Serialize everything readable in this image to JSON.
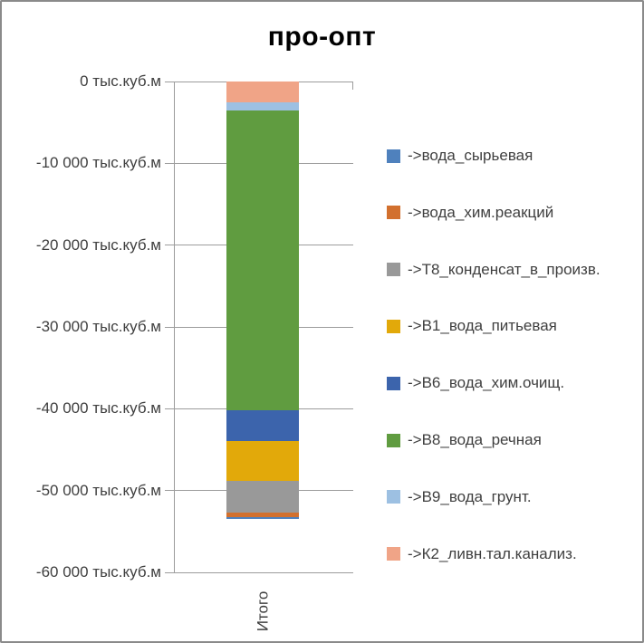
{
  "chart_data": {
    "type": "bar",
    "stacked": true,
    "orientation": "vertical",
    "title": "про-опт",
    "categories": [
      "Итого"
    ],
    "y_axis": {
      "unit": "тыс.куб.м",
      "max": 0,
      "min": -60000,
      "tick_values": [
        0,
        -10000,
        -20000,
        -30000,
        -40000,
        -50000,
        -60000
      ],
      "tick_labels": [
        "0 тыс.куб.м",
        "-10 000 тыс.куб.м",
        "-20 000 тыс.куб.м",
        "-30 000 тыс.куб.м",
        "-40 000 тыс.куб.м",
        "-50 000 тыс.куб.м",
        "-60 000 тыс.куб.м"
      ],
      "grid": true
    },
    "series": [
      {
        "name": "->вода_сырьевая",
        "color": "#4F81BD",
        "values": [
          -270
        ]
      },
      {
        "name": "->вода_хим.реакций",
        "color": "#D2702E",
        "values": [
          -530
        ]
      },
      {
        "name": "->Т8_конденсат_в_произв.",
        "color": "#999999",
        "values": [
          -3900
        ]
      },
      {
        "name": "->В1_вода_питьевая",
        "color": "#E2A90A",
        "values": [
          -4800
        ]
      },
      {
        "name": "->В6_вода_хим.очищ.",
        "color": "#3C64AC",
        "values": [
          -3800
        ]
      },
      {
        "name": "->В8_вода_речная",
        "color": "#609C40",
        "values": [
          -36700
        ]
      },
      {
        "name": "->В9_вода_грунт.",
        "color": "#9DC0E2",
        "values": [
          -1000
        ]
      },
      {
        "name": "->К2_ливн.тал.канализ.",
        "color": "#F0A487",
        "values": [
          -2500
        ]
      }
    ],
    "stack_order_from_zero": [
      "->К2_ливн.тал.канализ.",
      "->В9_вода_грунт.",
      "->В8_вода_речная",
      "->В6_вода_хим.очищ.",
      "->В1_вода_питьевая",
      "->Т8_конденсат_в_произв.",
      "->вода_хим.реакций",
      "->вода_сырьевая"
    ],
    "legend_position": "right"
  },
  "colors": {
    "border": "#8a8a8a",
    "gridline": "#9c9c9c",
    "axis_text": "#3f3f3f",
    "title_text": "#000000",
    "background": "#ffffff"
  }
}
